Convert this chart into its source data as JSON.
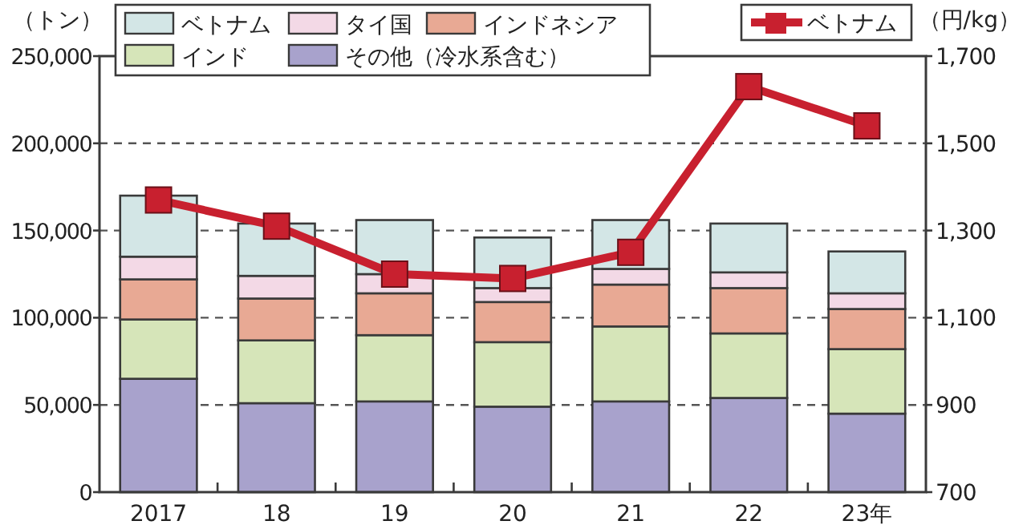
{
  "chart_data": {
    "type": "bar",
    "stacked": true,
    "categories": [
      "2017",
      "18",
      "19",
      "20",
      "21",
      "22",
      "23年"
    ],
    "ylabel": "（トン）",
    "y2label": "（円/kg）",
    "ylim": [
      0,
      250000
    ],
    "yticks": [
      {
        "value": 0,
        "label": "0"
      },
      {
        "value": 50000,
        "label": "50,000"
      },
      {
        "value": 100000,
        "label": "100,000"
      },
      {
        "value": 150000,
        "label": "150,000"
      },
      {
        "value": 200000,
        "label": "200,000"
      },
      {
        "value": 250000,
        "label": "250,000"
      }
    ],
    "y2lim": [
      700,
      1700
    ],
    "y2ticks": [
      {
        "value": 700,
        "label": "700"
      },
      {
        "value": 900,
        "label": "900"
      },
      {
        "value": 1100,
        "label": "1,100"
      },
      {
        "value": 1300,
        "label": "1,300"
      },
      {
        "value": 1500,
        "label": "1,500"
      },
      {
        "value": 1700,
        "label": "1,700"
      }
    ],
    "grid": "y",
    "legend": "top",
    "series": [
      {
        "name": "その他（冷水系含む）",
        "color": "#a8a2cc",
        "values": [
          65000,
          51000,
          52000,
          49000,
          52000,
          54000,
          45000
        ]
      },
      {
        "name": "インド",
        "color": "#d6e5b9",
        "values": [
          34000,
          36000,
          38000,
          37000,
          43000,
          37000,
          37000
        ]
      },
      {
        "name": "インドネシア",
        "color": "#e8a994",
        "values": [
          23000,
          24000,
          24000,
          23000,
          24000,
          26000,
          23000
        ]
      },
      {
        "name": "タイ国",
        "color": "#f3d9e6",
        "values": [
          13000,
          13000,
          11000,
          8000,
          9000,
          9000,
          9000
        ]
      },
      {
        "name": "ベトナム",
        "color": "#d3e6e6",
        "values": [
          35000,
          30000,
          31000,
          29000,
          28000,
          28000,
          24000
        ]
      },
      {
        "name": "ベトナム",
        "type": "line",
        "axis": "y2",
        "marker": "square",
        "line_style": "solid",
        "color": "#c8202f",
        "values": [
          1370,
          1310,
          1200,
          1190,
          1250,
          1630,
          1540
        ]
      }
    ]
  }
}
